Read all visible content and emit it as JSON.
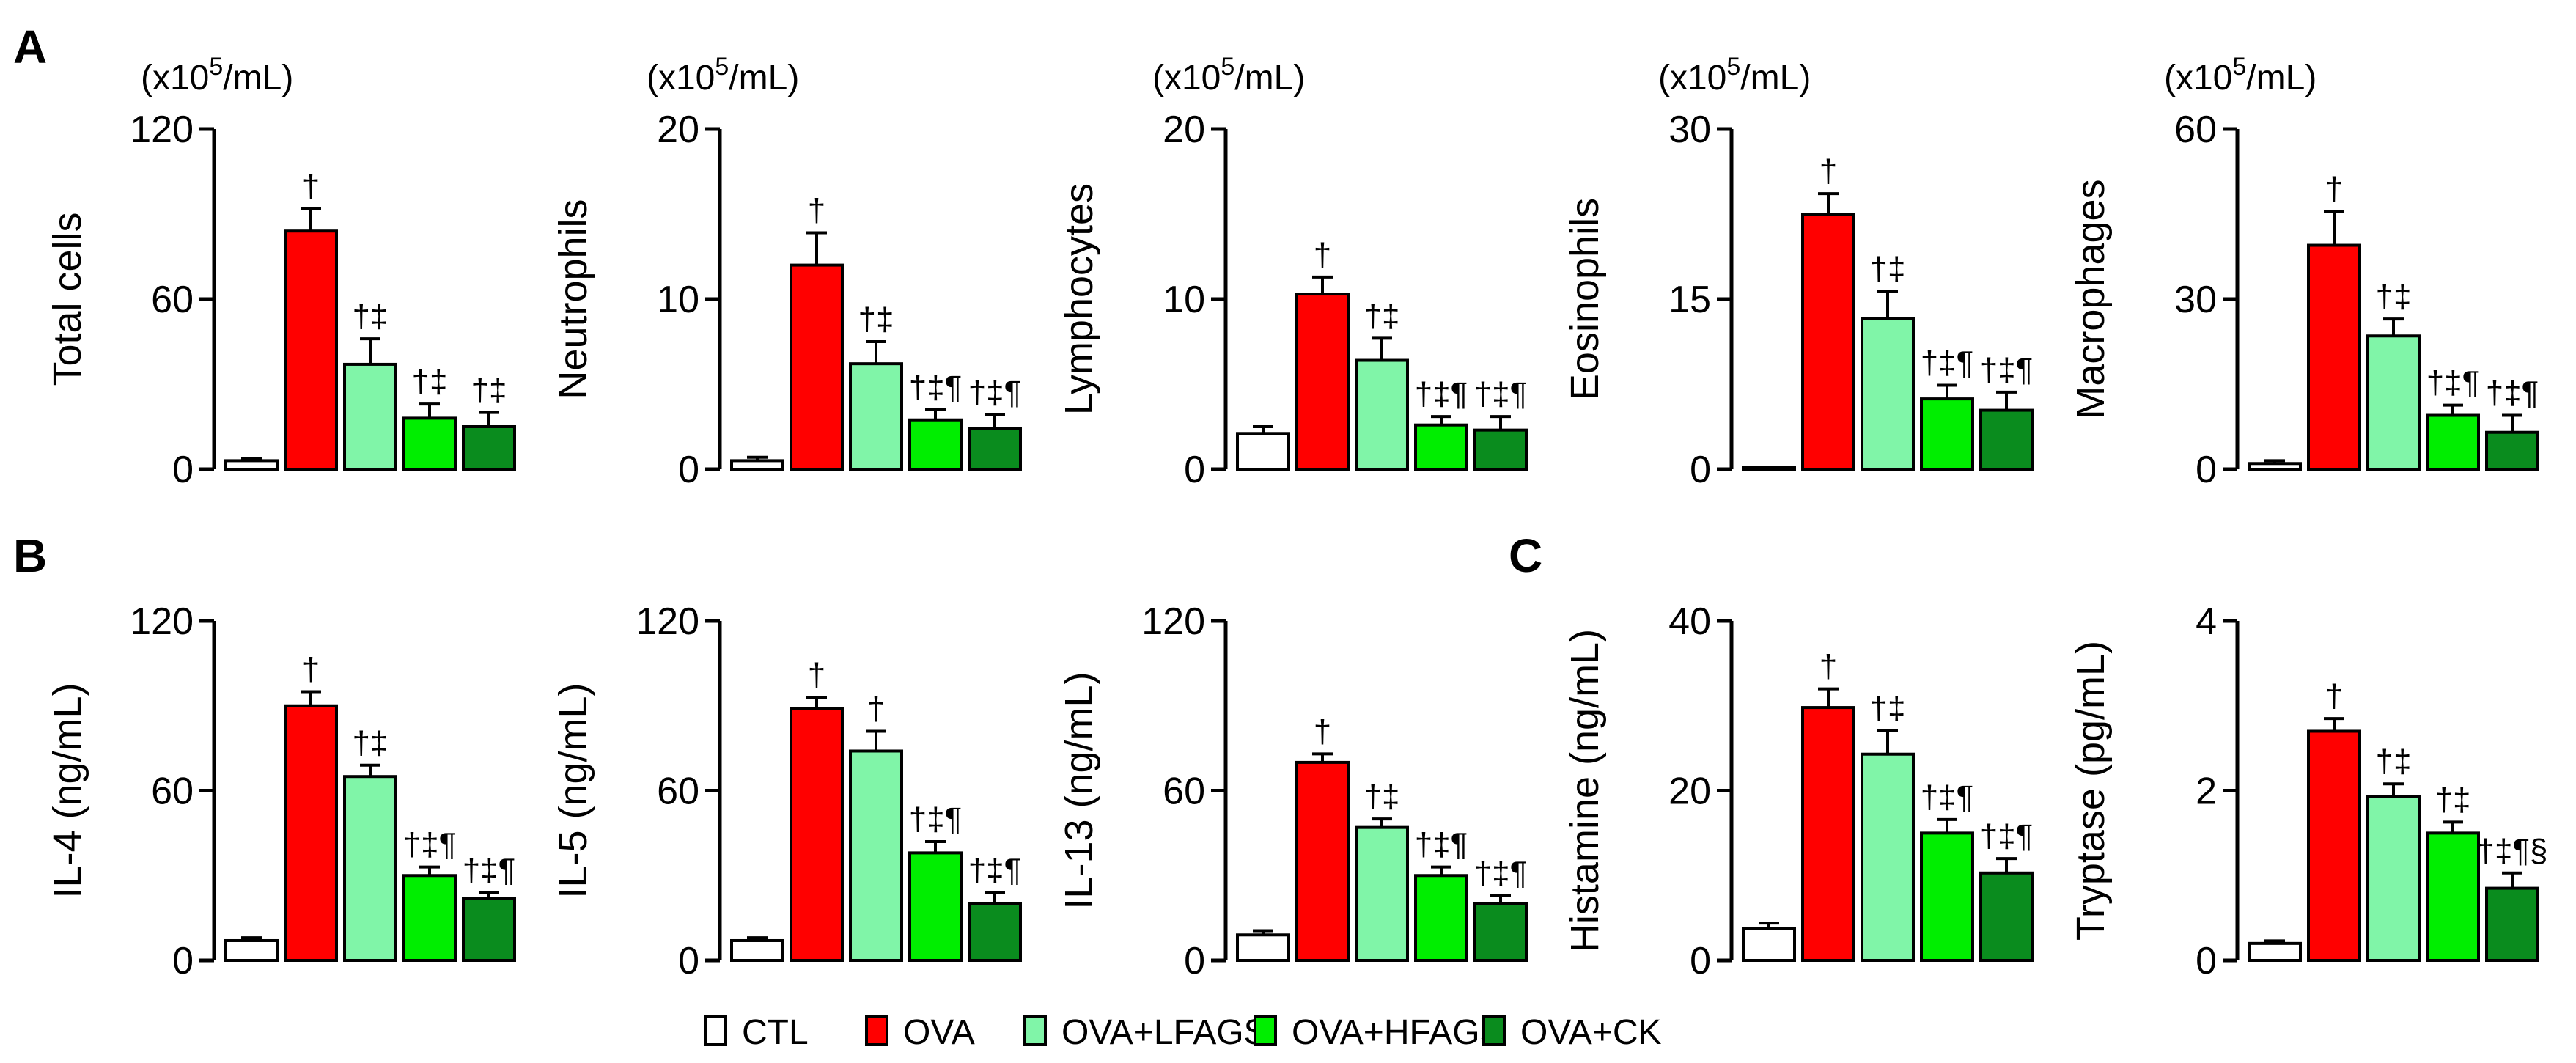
{
  "panel_labels": [
    "A",
    "B",
    "C"
  ],
  "legend": [
    {
      "name": "CTL",
      "color": "#ffffff"
    },
    {
      "name": "OVA",
      "color": "#ff0000"
    },
    {
      "name": "OVA+LFAGS",
      "color": "#80f5a8"
    },
    {
      "name": "OVA+HFAGS",
      "color": "#00ee00"
    },
    {
      "name": "OVA+CK",
      "color": "#0a8c1e"
    }
  ],
  "chart_data": [
    {
      "type": "bar",
      "panel": "A",
      "title": "",
      "unit_label": "(x10^5/mL)",
      "unit_prefix": "(x10",
      "unit_exp": "5",
      "unit_suffix": "/mL)",
      "ylabel": "Total cells",
      "ylim": [
        0,
        120
      ],
      "yticks": [
        "0",
        "60",
        "120"
      ],
      "categories": [
        "CTL",
        "OVA",
        "OVA+LFAGS",
        "OVA+HFAGS",
        "OVA+CK"
      ],
      "values": [
        3,
        84,
        37,
        18,
        15
      ],
      "errors": [
        0.8,
        8,
        9,
        5,
        5
      ],
      "significance": [
        "",
        "†",
        "†‡",
        "†‡",
        "†‡"
      ]
    },
    {
      "type": "bar",
      "panel": "A",
      "title": "",
      "unit_label": "(x10^5/mL)",
      "unit_prefix": "(x10",
      "unit_exp": "5",
      "unit_suffix": "/mL)",
      "ylabel": "Neutrophils",
      "ylim": [
        0,
        20
      ],
      "yticks": [
        "0",
        "10",
        "20"
      ],
      "categories": [
        "CTL",
        "OVA",
        "OVA+LFAGS",
        "OVA+HFAGS",
        "OVA+CK"
      ],
      "values": [
        0.5,
        12,
        6.2,
        2.9,
        2.4
      ],
      "errors": [
        0.2,
        1.9,
        1.3,
        0.6,
        0.8
      ],
      "significance": [
        "",
        "†",
        "†‡",
        "†‡¶",
        "†‡¶"
      ]
    },
    {
      "type": "bar",
      "panel": "A",
      "title": "",
      "unit_label": "(x10^5/mL)",
      "unit_prefix": "(x10",
      "unit_exp": "5",
      "unit_suffix": "/mL)",
      "ylabel": "Lymphocytes",
      "ylim": [
        0,
        20
      ],
      "yticks": [
        "0",
        "10",
        "20"
      ],
      "categories": [
        "CTL",
        "OVA",
        "OVA+LFAGS",
        "OVA+HFAGS",
        "OVA+CK"
      ],
      "values": [
        2.1,
        10.3,
        6.4,
        2.6,
        2.3
      ],
      "errors": [
        0.4,
        1.0,
        1.3,
        0.5,
        0.8
      ],
      "significance": [
        "",
        "†",
        "†‡",
        "†‡¶",
        "†‡¶"
      ]
    },
    {
      "type": "bar",
      "panel": "A",
      "title": "",
      "unit_label": "(x10^5/mL)",
      "unit_prefix": "(x10",
      "unit_exp": "5",
      "unit_suffix": "/mL)",
      "ylabel": "Eosinophils",
      "ylim": [
        0,
        30
      ],
      "yticks": [
        "0",
        "15",
        "30"
      ],
      "categories": [
        "CTL",
        "OVA",
        "OVA+LFAGS",
        "OVA+HFAGS",
        "OVA+CK"
      ],
      "values": [
        0.05,
        22.5,
        13.3,
        6.2,
        5.2
      ],
      "errors": [
        0.05,
        1.8,
        2.4,
        1.2,
        1.6
      ],
      "significance": [
        "",
        "†",
        "†‡",
        "†‡¶",
        "†‡¶"
      ]
    },
    {
      "type": "bar",
      "panel": "A",
      "title": "",
      "unit_label": "(x10^5/mL)",
      "unit_prefix": "(x10",
      "unit_exp": "5",
      "unit_suffix": "/mL)",
      "ylabel": "Macrophages",
      "ylim": [
        0,
        60
      ],
      "yticks": [
        "0",
        "30",
        "60"
      ],
      "categories": [
        "CTL",
        "OVA",
        "OVA+LFAGS",
        "OVA+HFAGS",
        "OVA+CK"
      ],
      "values": [
        1,
        39.5,
        23.5,
        9.5,
        6.5
      ],
      "errors": [
        0.5,
        6,
        3,
        1.8,
        3
      ],
      "significance": [
        "",
        "†",
        "†‡",
        "†‡¶",
        "†‡¶"
      ]
    },
    {
      "type": "bar",
      "panel": "B",
      "title": "",
      "ylabel": "IL-4 (ng/mL)",
      "ylim": [
        0,
        120
      ],
      "yticks": [
        "0",
        "60",
        "120"
      ],
      "categories": [
        "CTL",
        "OVA",
        "OVA+LFAGS",
        "OVA+HFAGS",
        "OVA+CK"
      ],
      "values": [
        7,
        90,
        65,
        30,
        22
      ],
      "errors": [
        1,
        5,
        4,
        3,
        2
      ],
      "significance": [
        "",
        "†",
        "†‡",
        "†‡¶",
        "†‡¶"
      ]
    },
    {
      "type": "bar",
      "panel": "B",
      "title": "",
      "ylabel": "IL-5 (ng/mL)",
      "ylim": [
        0,
        120
      ],
      "yticks": [
        "0",
        "60",
        "120"
      ],
      "categories": [
        "CTL",
        "OVA",
        "OVA+LFAGS",
        "OVA+HFAGS",
        "OVA+CK"
      ],
      "values": [
        7,
        89,
        74,
        38,
        20
      ],
      "errors": [
        1,
        4,
        7,
        4,
        4
      ],
      "significance": [
        "",
        "†",
        "†",
        "†‡¶",
        "†‡¶"
      ]
    },
    {
      "type": "bar",
      "panel": "B",
      "title": "",
      "ylabel": "IL-13 (ng/mL)",
      "ylim": [
        0,
        120
      ],
      "yticks": [
        "0",
        "60",
        "120"
      ],
      "categories": [
        "CTL",
        "OVA",
        "OVA+LFAGS",
        "OVA+HFAGS",
        "OVA+CK"
      ],
      "values": [
        9,
        70,
        47,
        30,
        20
      ],
      "errors": [
        1.5,
        3,
        3,
        3,
        3
      ],
      "significance": [
        "",
        "†",
        "†‡",
        "†‡¶",
        "†‡¶"
      ]
    },
    {
      "type": "bar",
      "panel": "C",
      "title": "",
      "ylabel": "Histamine (ng/mL)",
      "ylim": [
        0,
        40
      ],
      "yticks": [
        "0",
        "20",
        "40"
      ],
      "categories": [
        "CTL",
        "OVA",
        "OVA+LFAGS",
        "OVA+HFAGS",
        "OVA+CK"
      ],
      "values": [
        3.8,
        29.8,
        24.3,
        15,
        10.3
      ],
      "errors": [
        0.6,
        2.2,
        2.8,
        1.6,
        1.7
      ],
      "significance": [
        "",
        "†",
        "†‡",
        "†‡¶",
        "†‡¶"
      ]
    },
    {
      "type": "bar",
      "panel": "C",
      "title": "",
      "ylabel": "Tryptase (pg/mL)",
      "ylim": [
        0,
        4
      ],
      "yticks": [
        "0",
        "2",
        "4"
      ],
      "categories": [
        "CTL",
        "OVA",
        "OVA+LFAGS",
        "OVA+HFAGS",
        "OVA+CK"
      ],
      "values": [
        0.2,
        2.7,
        1.93,
        1.5,
        0.85
      ],
      "errors": [
        0.03,
        0.15,
        0.15,
        0.13,
        0.18
      ],
      "significance": [
        "",
        "†",
        "†‡",
        "†‡",
        "†‡¶§"
      ]
    }
  ]
}
